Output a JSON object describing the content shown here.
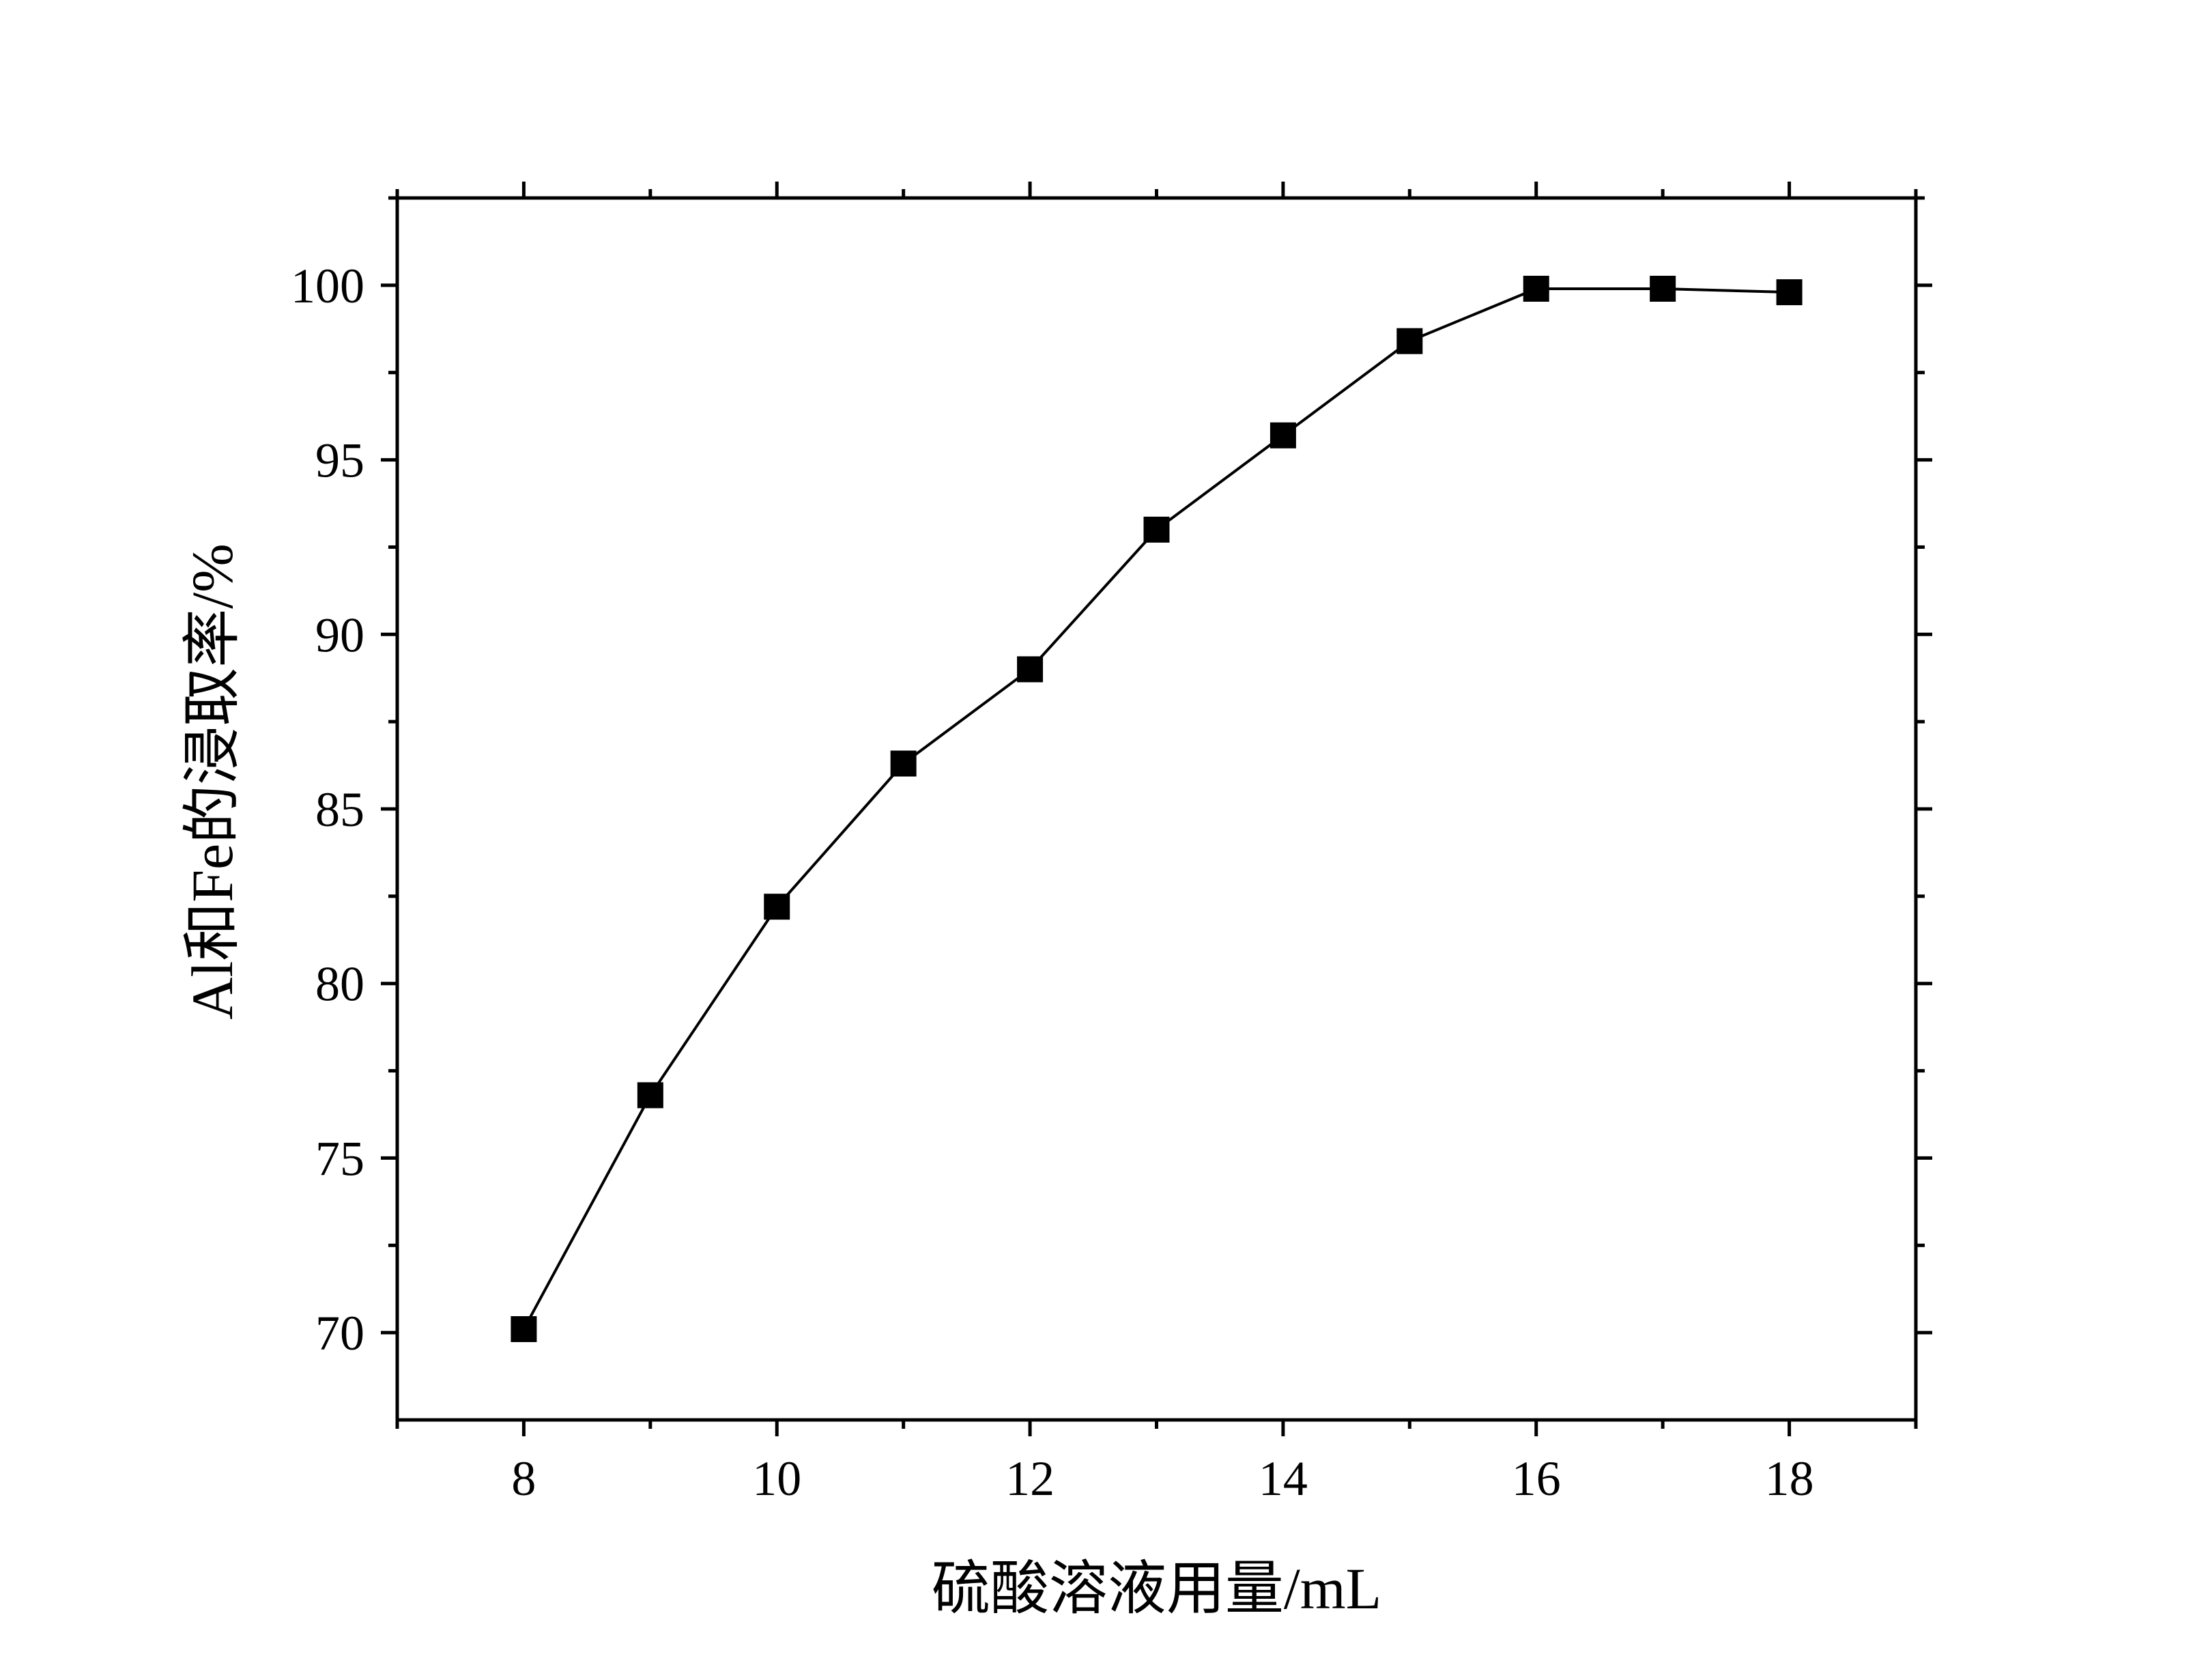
{
  "chart_data": {
    "type": "line",
    "title": "",
    "xlabel": "硫酸溶液用量/mL",
    "ylabel": "Al和Fe的浸取率/%",
    "xlim": [
      7,
      19
    ],
    "ylim": [
      67.5,
      102.5
    ],
    "x_ticks": [
      8,
      10,
      12,
      14,
      16,
      18
    ],
    "y_ticks": [
      70,
      75,
      80,
      85,
      90,
      95,
      100
    ],
    "x_minor_ticks": [
      7,
      9,
      11,
      13,
      15,
      17,
      19
    ],
    "y_minor_ticks": [
      72.5,
      77.5,
      82.5,
      87.5,
      92.5,
      97.5,
      102.5
    ],
    "grid": false,
    "legend": "none",
    "marker": "square",
    "color": "#000000",
    "series": [
      {
        "x": [
          8,
          9,
          10,
          11,
          12,
          13,
          14,
          15,
          16,
          17,
          18
        ],
        "values": [
          70.1,
          76.8,
          82.2,
          86.3,
          89.0,
          93.0,
          95.7,
          98.4,
          99.9,
          99.9,
          99.8
        ]
      }
    ]
  }
}
